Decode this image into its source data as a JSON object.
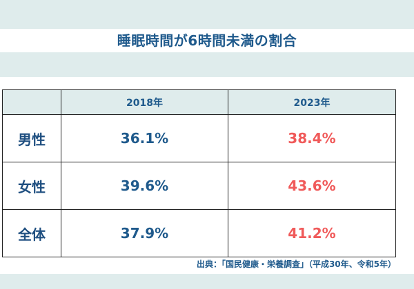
{
  "title": "睡眠時間が6時間未満の割合",
  "source": "出典：「国民健康・栄養調査」（平成30年、令和5年）",
  "colors": {
    "background": "#dfecec",
    "title": "#1f5a8c",
    "value_2018": "#1f5a8c",
    "value_2023": "#f05a5a"
  },
  "chart_data": {
    "type": "table",
    "title": "睡眠時間が6時間未満の割合",
    "columns": [
      "",
      "2018年",
      "2023年"
    ],
    "rows": [
      {
        "label": "男性",
        "values": [
          "36.1%",
          "38.4%"
        ]
      },
      {
        "label": "女性",
        "values": [
          "39.6%",
          "43.6%"
        ]
      },
      {
        "label": "全体",
        "values": [
          "37.9%",
          "41.2%"
        ]
      }
    ]
  }
}
